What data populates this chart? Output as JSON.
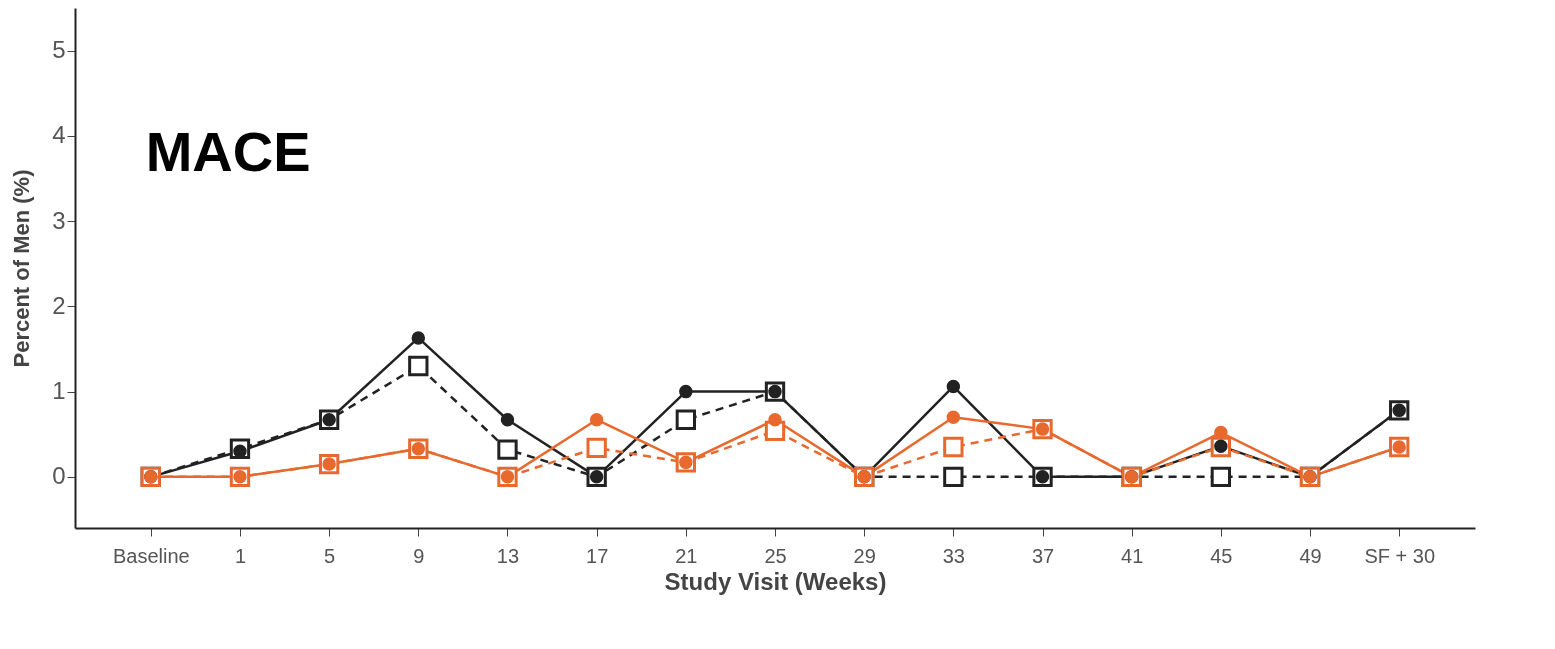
{
  "chart_data": {
    "type": "line",
    "title": "MACE",
    "xlabel": "Study Visit (Weeks)",
    "ylabel": "Percent of Men (%)",
    "categories": [
      "Baseline",
      "1",
      "5",
      "9",
      "13",
      "17",
      "21",
      "25",
      "29",
      "33",
      "37",
      "41",
      "45",
      "49",
      "SF + 30"
    ],
    "ylim": [
      -0.6,
      5.5
    ],
    "yticks": [
      0,
      1,
      2,
      3,
      4,
      5
    ],
    "series": [
      {
        "color": "#222222",
        "marker": "circle",
        "line_style": "solid",
        "values": [
          0,
          0.3,
          0.67,
          1.63,
          0.67,
          0,
          1.0,
          1.0,
          0,
          1.06,
          0,
          0,
          0.36,
          0,
          0.78
        ]
      },
      {
        "color": "#222222",
        "marker": "square",
        "line_style": "dashed",
        "values": [
          0,
          0.33,
          0.67,
          1.3,
          0.32,
          0,
          0.67,
          1.0,
          0,
          0,
          0,
          0,
          0,
          0,
          0.78
        ]
      },
      {
        "color": "#e8692e",
        "marker": "circle",
        "line_style": "solid",
        "values": [
          0,
          0,
          0.15,
          0.33,
          0,
          0.67,
          0.17,
          0.67,
          0,
          0.7,
          0.56,
          0,
          0.52,
          0,
          0.35
        ]
      },
      {
        "color": "#e8692e",
        "marker": "square",
        "line_style": "dashed",
        "values": [
          0,
          0,
          0.15,
          0.33,
          0,
          0.34,
          0.17,
          0.54,
          0,
          0.35,
          0.56,
          0,
          0.35,
          0,
          0.35
        ]
      }
    ]
  }
}
